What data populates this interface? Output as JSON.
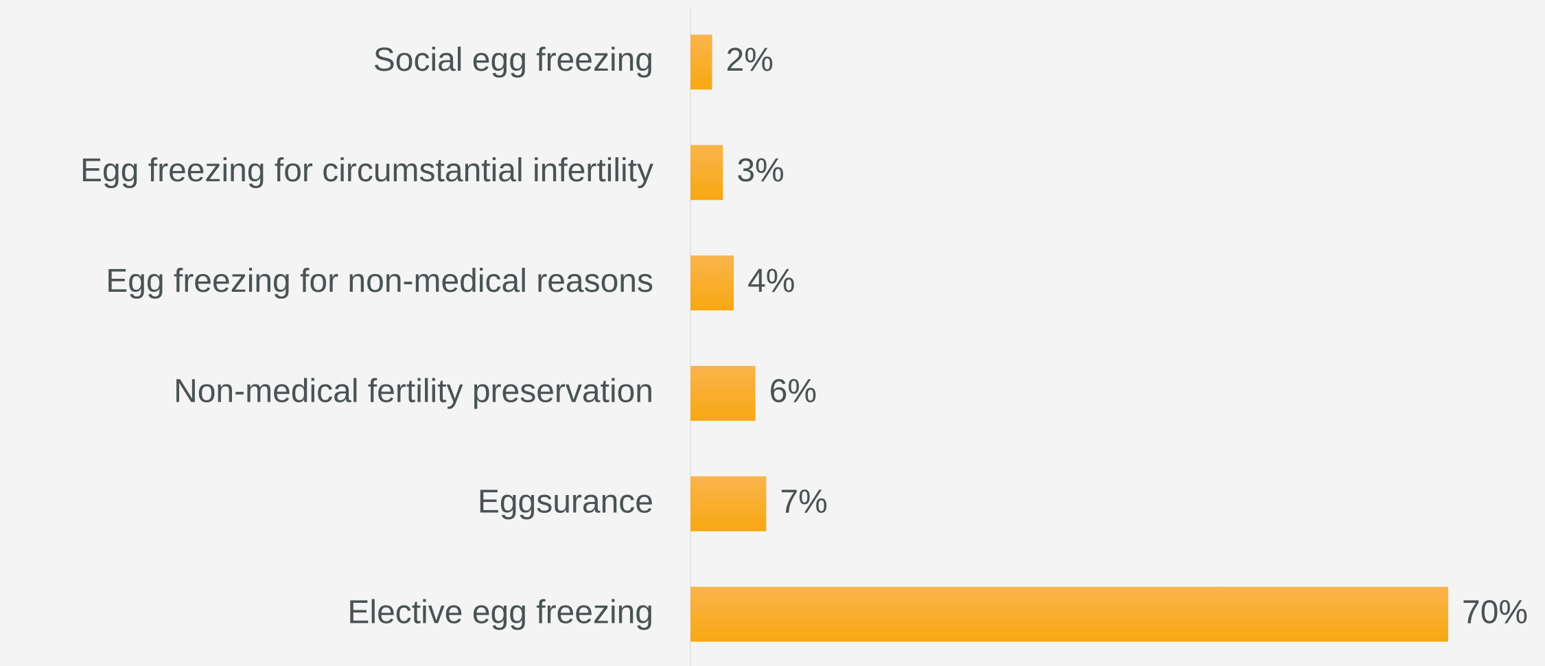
{
  "chart_data": {
    "type": "bar",
    "orientation": "horizontal",
    "categories": [
      "Social egg freezing",
      "Egg freezing for circumstantial infertility",
      "Egg freezing for non-medical reasons",
      "Non-medical fertility preservation",
      "Eggsurance",
      "Elective egg freezing"
    ],
    "values": [
      2,
      3,
      4,
      6,
      7,
      70
    ],
    "value_labels": [
      "2%",
      "3%",
      "4%",
      "6%",
      "7%",
      "70%"
    ],
    "color": "#f8ab22"
  }
}
